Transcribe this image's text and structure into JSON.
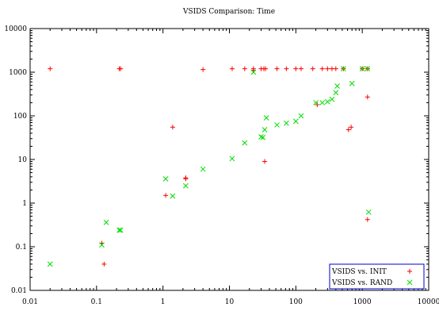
{
  "chart_data": {
    "type": "scatter",
    "title": "VSIDS Comparison: Time",
    "xlabel": "",
    "ylabel": "",
    "xscale": "log",
    "yscale": "log",
    "xlim": [
      0.01,
      10000
    ],
    "ylim": [
      0.01,
      10000
    ],
    "x_ticks": [
      "0.01",
      "0.1",
      "1",
      "10",
      "100",
      "1000",
      "10000"
    ],
    "y_ticks": [
      "0.01",
      "0.1",
      "1",
      "10",
      "100",
      "1000",
      "10000"
    ],
    "grid": false,
    "legend_position": "bottom-right",
    "series": [
      {
        "name": "VSIDS vs. INIT",
        "marker": "plus",
        "color": "#ff0000",
        "points": [
          [
            0.02,
            1200
          ],
          [
            0.12,
            0.12
          ],
          [
            0.13,
            0.04
          ],
          [
            0.22,
            1200
          ],
          [
            0.23,
            1200
          ],
          [
            1.1,
            1.5
          ],
          [
            1.4,
            55
          ],
          [
            2.2,
            3.8
          ],
          [
            2.2,
            3.6
          ],
          [
            4,
            1150
          ],
          [
            11,
            1200
          ],
          [
            17,
            1200
          ],
          [
            23,
            1200
          ],
          [
            23,
            1100
          ],
          [
            30,
            1200
          ],
          [
            33,
            1200
          ],
          [
            35,
            1200
          ],
          [
            34,
            9
          ],
          [
            52,
            1200
          ],
          [
            72,
            1200
          ],
          [
            100,
            1200
          ],
          [
            120,
            1200
          ],
          [
            180,
            1200
          ],
          [
            210,
            180
          ],
          [
            250,
            1200
          ],
          [
            300,
            1200
          ],
          [
            350,
            1200
          ],
          [
            400,
            1200
          ],
          [
            520,
            1200
          ],
          [
            620,
            48
          ],
          [
            680,
            55
          ],
          [
            1000,
            1200
          ],
          [
            1200,
            1200
          ],
          [
            1200,
            270
          ],
          [
            1200,
            0.42
          ]
        ]
      },
      {
        "name": "VSIDS vs. RAND",
        "marker": "cross",
        "color": "#00dd00",
        "points": [
          [
            0.02,
            0.04
          ],
          [
            0.12,
            0.11
          ],
          [
            0.14,
            0.36
          ],
          [
            0.22,
            0.24
          ],
          [
            0.23,
            0.24
          ],
          [
            1.1,
            3.6
          ],
          [
            1.4,
            1.45
          ],
          [
            2.2,
            2.5
          ],
          [
            4,
            6
          ],
          [
            11,
            10.5
          ],
          [
            17,
            24
          ],
          [
            23,
            1000
          ],
          [
            30,
            33
          ],
          [
            32,
            32
          ],
          [
            34,
            48
          ],
          [
            36,
            90
          ],
          [
            52,
            62
          ],
          [
            72,
            68
          ],
          [
            100,
            75
          ],
          [
            120,
            100
          ],
          [
            200,
            200
          ],
          [
            250,
            200
          ],
          [
            300,
            210
          ],
          [
            350,
            240
          ],
          [
            400,
            340
          ],
          [
            420,
            480
          ],
          [
            520,
            1200
          ],
          [
            700,
            550
          ],
          [
            1000,
            1200
          ],
          [
            1200,
            1200
          ],
          [
            1250,
            0.62
          ]
        ]
      }
    ]
  }
}
